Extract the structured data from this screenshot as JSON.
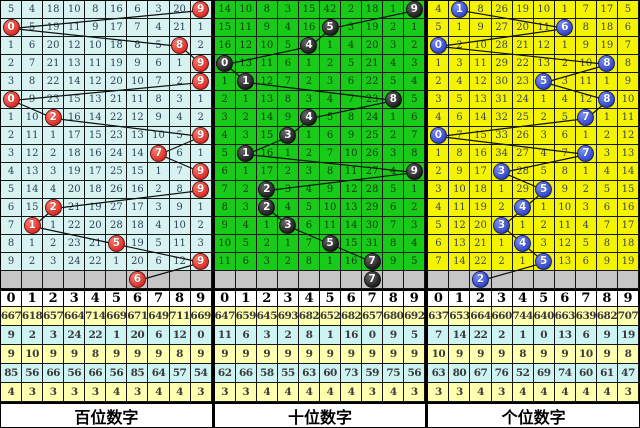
{
  "chart_data": {
    "type": "table",
    "description": "Three-panel lottery digit trend chart: per-digit miss counts with drawn-digit balls and connecting lines, per-column statistics below",
    "panels": [
      {
        "label": "百位数字",
        "digits": [
          "0",
          "1",
          "2",
          "3",
          "4",
          "5",
          "6",
          "7",
          "8",
          "9"
        ],
        "rows": [
          [
            "5",
            "4",
            "18",
            "10",
            "8",
            "16",
            "6",
            "3",
            "20",
            "*9"
          ],
          [
            "*0",
            "5",
            "19",
            "11",
            "9",
            "17",
            "7",
            "4",
            "21",
            "1"
          ],
          [
            "1",
            "6",
            "20",
            "12",
            "10",
            "18",
            "8",
            "5",
            "*8",
            "2"
          ],
          [
            "2",
            "7",
            "21",
            "13",
            "11",
            "19",
            "9",
            "6",
            "1",
            "*9"
          ],
          [
            "3",
            "8",
            "22",
            "14",
            "12",
            "20",
            "10",
            "7",
            "2",
            "*9"
          ],
          [
            "*0",
            "9",
            "23",
            "15",
            "13",
            "21",
            "11",
            "8",
            "3",
            "1"
          ],
          [
            "1",
            "10",
            "*2",
            "16",
            "14",
            "22",
            "12",
            "9",
            "4",
            "2"
          ],
          [
            "2",
            "11",
            "1",
            "17",
            "15",
            "23",
            "13",
            "10",
            "5",
            "*9"
          ],
          [
            "3",
            "12",
            "2",
            "18",
            "16",
            "24",
            "14",
            "*7",
            "6",
            "1"
          ],
          [
            "4",
            "13",
            "3",
            "19",
            "17",
            "25",
            "15",
            "1",
            "7",
            "*9"
          ],
          [
            "5",
            "14",
            "4",
            "20",
            "18",
            "26",
            "16",
            "2",
            "8",
            "*9"
          ],
          [
            "6",
            "15",
            "*2",
            "21",
            "19",
            "27",
            "17",
            "3",
            "9",
            "1"
          ],
          [
            "7",
            "*1",
            "1",
            "22",
            "20",
            "28",
            "18",
            "4",
            "10",
            "2"
          ],
          [
            "8",
            "1",
            "2",
            "23",
            "21",
            "*5",
            "19",
            "5",
            "11",
            "3"
          ],
          [
            "9",
            "2",
            "3",
            "24",
            "22",
            "1",
            "20",
            "6",
            "12",
            "*9"
          ]
        ],
        "pending_ball": "6",
        "stats": [
          [
            "667",
            "618",
            "657",
            "664",
            "714",
            "669",
            "671",
            "649",
            "711",
            "669"
          ],
          [
            "9",
            "2",
            "3",
            "24",
            "22",
            "1",
            "20",
            "6",
            "12",
            "0"
          ],
          [
            "9",
            "10",
            "9",
            "9",
            "8",
            "9",
            "9",
            "9",
            "8",
            "9"
          ],
          [
            "85",
            "56",
            "66",
            "56",
            "66",
            "56",
            "85",
            "64",
            "57",
            "54"
          ],
          [
            "4",
            "3",
            "3",
            "3",
            "3",
            "4",
            "3",
            "4",
            "4",
            "3"
          ]
        ],
        "theme": {
          "bg": "#d6f3f2",
          "text": "#2c4257",
          "ball_hi": "#ff8070",
          "ball_lo": "#cf0a0a"
        }
      },
      {
        "label": "十位数字",
        "digits": [
          "0",
          "1",
          "2",
          "3",
          "4",
          "5",
          "6",
          "7",
          "8",
          "9"
        ],
        "rows": [
          [
            "14",
            "10",
            "8",
            "3",
            "15",
            "42",
            "2",
            "18",
            "1",
            "*9"
          ],
          [
            "15",
            "11",
            "9",
            "4",
            "16",
            "*5",
            "3",
            "19",
            "2",
            "1"
          ],
          [
            "16",
            "12",
            "10",
            "5",
            "*4",
            "1",
            "4",
            "20",
            "3",
            "2"
          ],
          [
            "*0",
            "13",
            "11",
            "6",
            "1",
            "2",
            "5",
            "21",
            "4",
            "3"
          ],
          [
            "1",
            "*1",
            "12",
            "7",
            "2",
            "3",
            "6",
            "22",
            "5",
            "4"
          ],
          [
            "2",
            "1",
            "13",
            "8",
            "3",
            "4",
            "7",
            "23",
            "*8",
            "5"
          ],
          [
            "3",
            "2",
            "14",
            "9",
            "*4",
            "5",
            "8",
            "24",
            "1",
            "6"
          ],
          [
            "4",
            "3",
            "15",
            "*3",
            "1",
            "6",
            "9",
            "25",
            "2",
            "7"
          ],
          [
            "5",
            "*1",
            "16",
            "1",
            "2",
            "7",
            "10",
            "26",
            "3",
            "8"
          ],
          [
            "6",
            "1",
            "17",
            "2",
            "3",
            "8",
            "11",
            "27",
            "4",
            "*9"
          ],
          [
            "7",
            "2",
            "*2",
            "3",
            "4",
            "9",
            "12",
            "28",
            "5",
            "1"
          ],
          [
            "8",
            "3",
            "*2",
            "4",
            "5",
            "10",
            "13",
            "29",
            "6",
            "2"
          ],
          [
            "9",
            "4",
            "1",
            "*3",
            "6",
            "11",
            "14",
            "30",
            "7",
            "3"
          ],
          [
            "10",
            "5",
            "2",
            "1",
            "7",
            "*5",
            "15",
            "31",
            "8",
            "4"
          ],
          [
            "11",
            "6",
            "3",
            "2",
            "8",
            "1",
            "16",
            "*7",
            "9",
            "5"
          ]
        ],
        "pending_ball": "7",
        "stats": [
          [
            "647",
            "659",
            "645",
            "693",
            "682",
            "652",
            "682",
            "657",
            "680",
            "692"
          ],
          [
            "11",
            "6",
            "3",
            "2",
            "8",
            "1",
            "16",
            "0",
            "9",
            "5"
          ],
          [
            "9",
            "9",
            "9",
            "9",
            "9",
            "9",
            "9",
            "9",
            "9",
            "9"
          ],
          [
            "62",
            "66",
            "58",
            "55",
            "63",
            "60",
            "73",
            "59",
            "75",
            "56"
          ],
          [
            "3",
            "3",
            "4",
            "4",
            "4",
            "4",
            "4",
            "3",
            "4",
            "3"
          ]
        ],
        "theme": {
          "bg": "#19cb19",
          "text": "#0b3a0b",
          "ball_hi": "#6a6a6a",
          "ball_lo": "#000000"
        }
      },
      {
        "label": "个位数字",
        "digits": [
          "0",
          "1",
          "2",
          "3",
          "4",
          "5",
          "6",
          "7",
          "8",
          "9"
        ],
        "rows": [
          [
            "4",
            "*1",
            "8",
            "26",
            "19",
            "10",
            "1",
            "7",
            "17",
            "5"
          ],
          [
            "5",
            "1",
            "9",
            "27",
            "20",
            "11",
            "*6",
            "8",
            "18",
            "6"
          ],
          [
            "*0",
            "2",
            "10",
            "28",
            "21",
            "12",
            "1",
            "9",
            "19",
            "7"
          ],
          [
            "1",
            "3",
            "11",
            "29",
            "22",
            "13",
            "2",
            "10",
            "*8",
            "8"
          ],
          [
            "2",
            "4",
            "12",
            "30",
            "23",
            "*5",
            "3",
            "11",
            "1",
            "9"
          ],
          [
            "3",
            "5",
            "13",
            "31",
            "24",
            "1",
            "4",
            "12",
            "*8",
            "10"
          ],
          [
            "4",
            "6",
            "14",
            "32",
            "25",
            "2",
            "5",
            "*7",
            "1",
            "11"
          ],
          [
            "*0",
            "7",
            "15",
            "33",
            "26",
            "3",
            "6",
            "1",
            "2",
            "12"
          ],
          [
            "1",
            "8",
            "16",
            "34",
            "27",
            "4",
            "7",
            "*7",
            "3",
            "13"
          ],
          [
            "2",
            "9",
            "17",
            "*3",
            "28",
            "5",
            "8",
            "1",
            "4",
            "14"
          ],
          [
            "3",
            "10",
            "18",
            "1",
            "29",
            "*5",
            "9",
            "2",
            "5",
            "15"
          ],
          [
            "4",
            "11",
            "19",
            "2",
            "*4",
            "1",
            "10",
            "3",
            "6",
            "16"
          ],
          [
            "5",
            "12",
            "20",
            "*3",
            "1",
            "2",
            "11",
            "4",
            "7",
            "17"
          ],
          [
            "6",
            "13",
            "21",
            "1",
            "*4",
            "3",
            "12",
            "5",
            "8",
            "18"
          ],
          [
            "7",
            "14",
            "22",
            "2",
            "1",
            "*5",
            "13",
            "6",
            "9",
            "19"
          ]
        ],
        "pending_ball": "2",
        "stats": [
          [
            "637",
            "653",
            "664",
            "660",
            "744",
            "640",
            "663",
            "639",
            "682",
            "707"
          ],
          [
            "7",
            "14",
            "22",
            "2",
            "1",
            "0",
            "13",
            "6",
            "9",
            "19"
          ],
          [
            "10",
            "9",
            "9",
            "9",
            "8",
            "9",
            "9",
            "10",
            "9",
            "8"
          ],
          [
            "63",
            "80",
            "67",
            "76",
            "52",
            "69",
            "74",
            "60",
            "61",
            "47"
          ],
          [
            "3",
            "3",
            "4",
            "3",
            "4",
            "4",
            "4",
            "4",
            "4",
            "3"
          ]
        ],
        "theme": {
          "bg": "#f4f400",
          "text": "#3f4450",
          "ball_hi": "#7b93ff",
          "ball_lo": "#1526b5"
        }
      }
    ]
  }
}
